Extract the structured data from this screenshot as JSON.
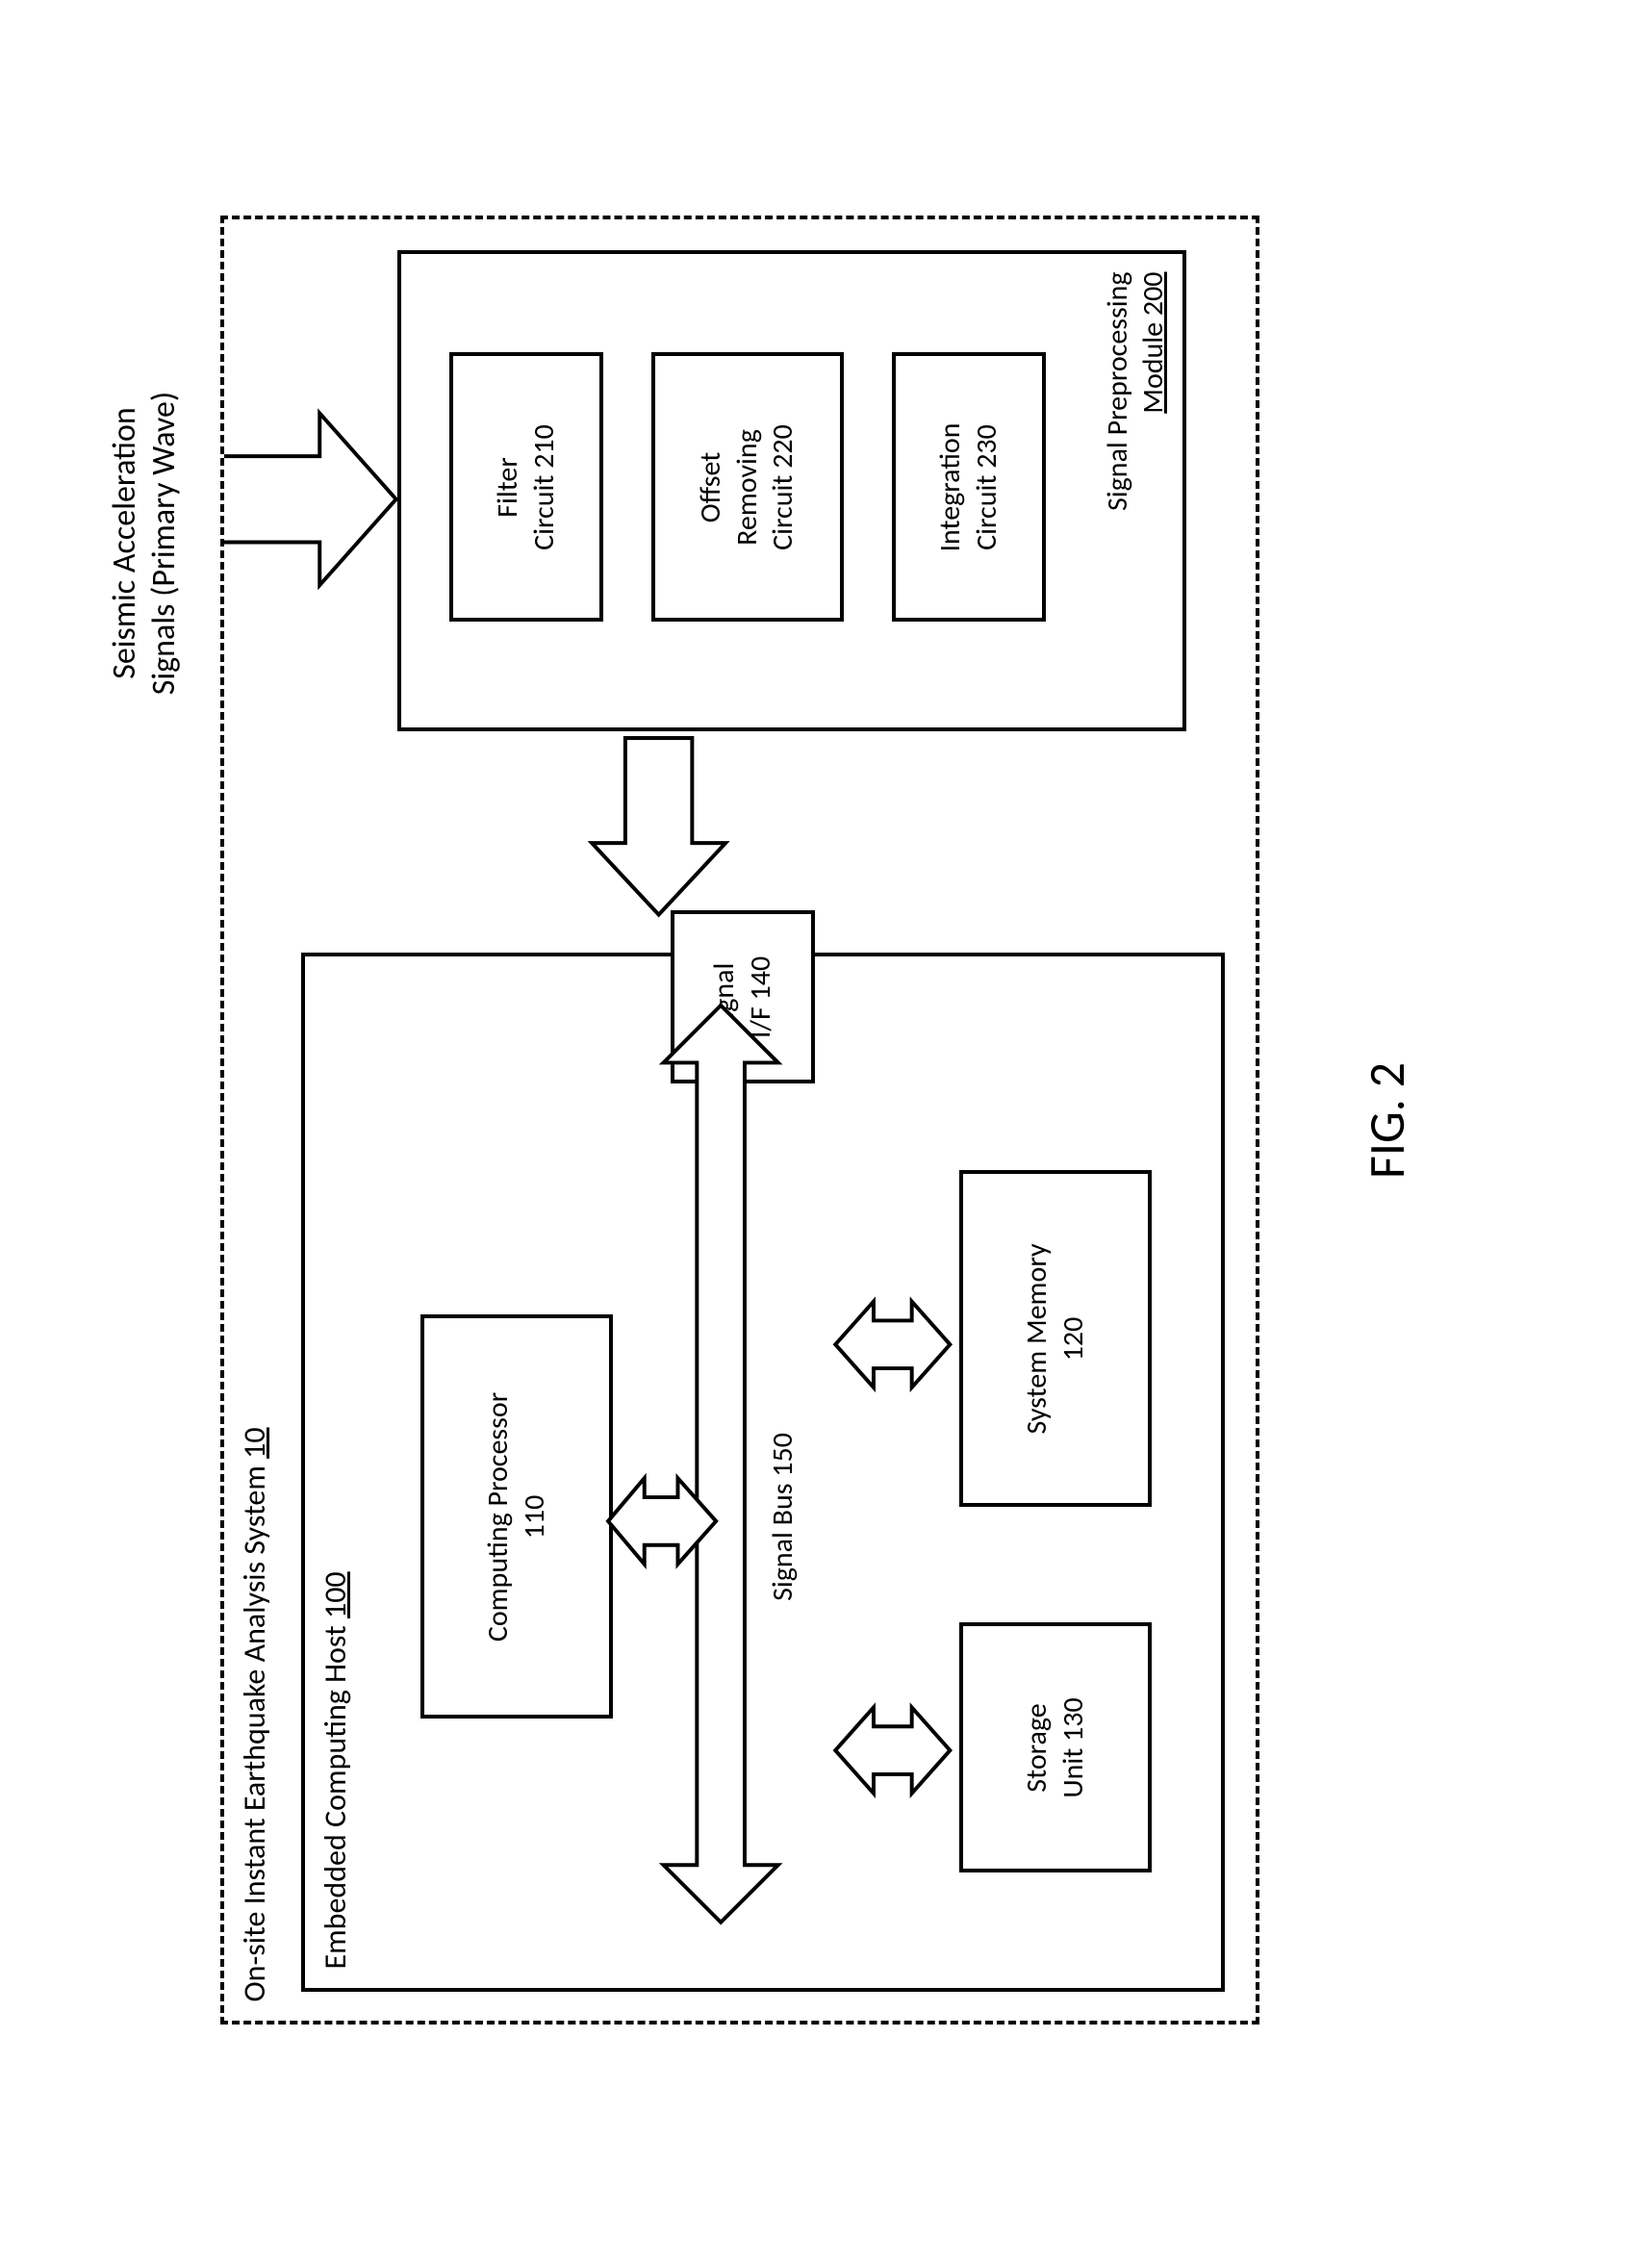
{
  "figure_label": "FIG. 2",
  "input_label": "Seismic Acceleration\nSignals (Primary Wave)",
  "system": {
    "title_prefix": "On-site Instant Earthquake Analysis System ",
    "title_id": "10"
  },
  "host": {
    "title_prefix": "Embedded Computing Host ",
    "title_id": "100",
    "processor": "Computing Processor\n110",
    "bus": "Signal Bus 150",
    "storage": "Storage\nUnit 130",
    "memory": "System Memory\n120",
    "signal_if": "Signal\nI/F 140"
  },
  "preproc": {
    "title_prefix": "Signal Preprocessing\n",
    "title_id": "Module 200",
    "filter": "Filter\nCircuit 210",
    "offset": "Offset\nRemoving\nCircuit 220",
    "integration": "Integration\nCircuit 230"
  },
  "style": {
    "stroke": "#000000",
    "stroke_width": 4,
    "arrow_fill": "#ffffff",
    "font_family": "Calibri, Arial, sans-serif",
    "title_fontsize": 32,
    "block_fontsize": 30,
    "fig_fontsize": 52,
    "background": "#ffffff"
  }
}
